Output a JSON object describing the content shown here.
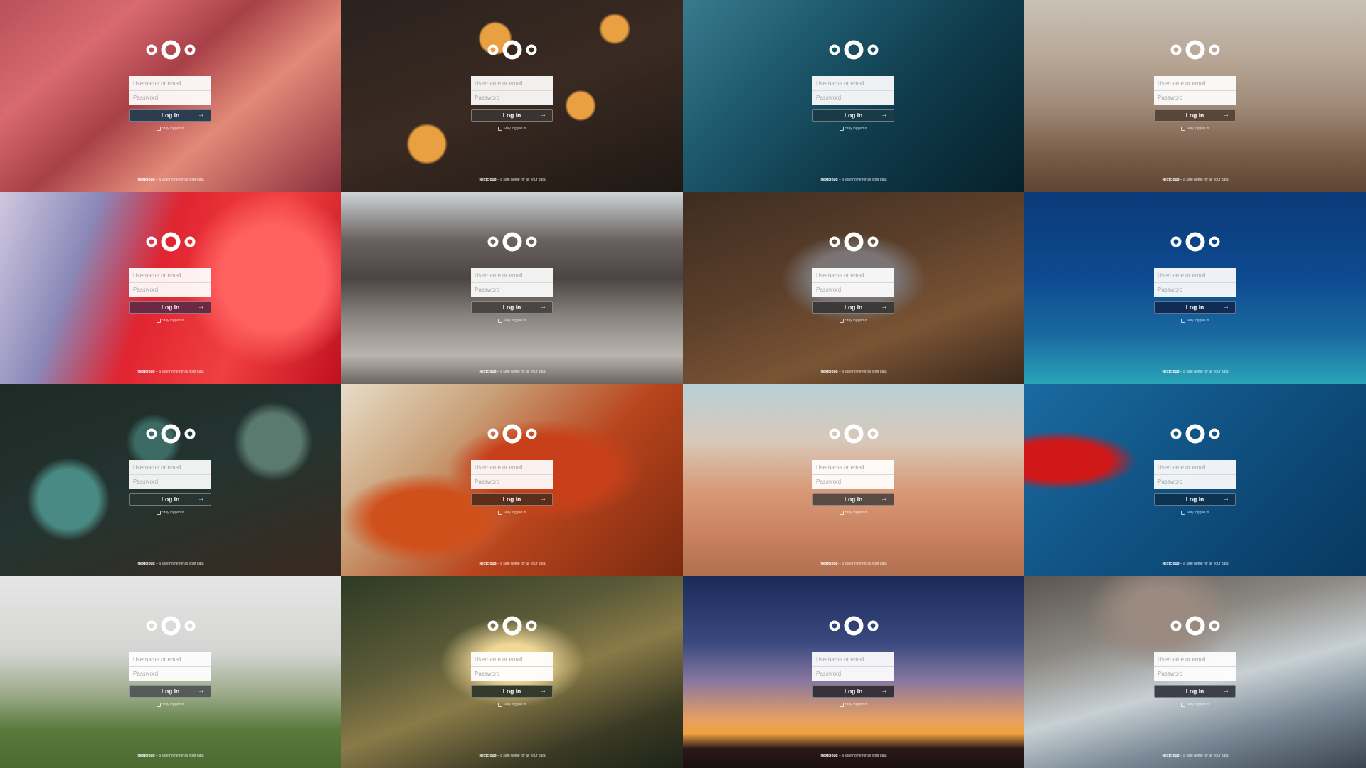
{
  "tiles": [
    {
      "name": "canyon",
      "bg": "linear-gradient(140deg,#b8505a 0%,#d86a70 25%,#a84048 45%,#e28a78 65%,#8a2f3e 100%)",
      "button_color": "#2c3d50"
    },
    {
      "name": "berries",
      "bg": "radial-gradient(circle at 45% 20%,#e8a040 0 6%,transparent 7%),radial-gradient(circle at 70% 55%,#e8a040 0 5%,transparent 6%),radial-gradient(circle at 25% 75%,#e8a040 0 6%,transparent 7%),radial-gradient(circle at 80% 15%,#e8a040 0 4%,transparent 5%),linear-gradient(160deg,#2a221e 0%,#3a2a22 50%,#1e1814 100%)",
      "button_color": "#3b3330"
    },
    {
      "name": "water",
      "bg": "linear-gradient(135deg,#3a7b8e 0%,#1e5a6e 30%,#0f3b4c 60%,#06202a 100%)",
      "button_color": "#1a3a48"
    },
    {
      "name": "beach-cliffs",
      "bg": "linear-gradient(180deg,#c9c1b6 0%,#b8a797 30%,#a08a78 55%,#7a5e4a 80%,#5e4434 100%)",
      "button_color": "#5a4638"
    },
    {
      "name": "lanterns",
      "bg": "radial-gradient(circle at 80% 45%,#ff6060 0 18%,transparent 30%),linear-gradient(110deg,#d0c8e0 0%,#8a88b8 25%,#e02430 45%,#f04040 70%,#c01020 100%)",
      "button_color": "#6a2a44"
    },
    {
      "name": "seal",
      "bg": "linear-gradient(180deg,#cfd4d8 0%,#6a6260 25%,#4a4442 45%,#8a8480 65%,#b8b4ae 85%,#6c6662 100%)",
      "button_color": "#4a4644"
    },
    {
      "name": "raccoon",
      "bg": "radial-gradient(ellipse at 50% 45%,#7a7474 0 18%,transparent 30%),linear-gradient(160deg,#3e2c22 0%,#5a3e2a 40%,#7a5434 70%,#3a281c 100%)",
      "button_color": "#3c3a38"
    },
    {
      "name": "ocean",
      "bg": "linear-gradient(180deg,#0a3a78 0%,#0e4a90 45%,#1a6aa0 75%,#2aa4b8 100%)",
      "button_color": "#0e2c54"
    },
    {
      "name": "moss",
      "bg": "radial-gradient(circle at 20% 60%,#4a8a84 0 10%,transparent 14%),radial-gradient(circle at 80% 30%,#5a7a70 0 9%,transparent 13%),radial-gradient(circle at 45% 30%,#3c6a64 0 8%,transparent 12%),linear-gradient(160deg,#1e2a26 0%,#243430 50%,#3a2a20 100%)",
      "button_color": "#283432"
    },
    {
      "name": "leaves",
      "bg": "radial-gradient(ellipse at 60% 45%,#c8401a 0 22%,transparent 34%),radial-gradient(ellipse at 25% 70%,#d0501c 0 15%,transparent 24%),linear-gradient(135deg,#e8dcc8 0%,#c9a078 30%,#b8441c 60%,#7a2a10 100%)",
      "button_color": "#5a2e1a"
    },
    {
      "name": "desert",
      "bg": "linear-gradient(180deg,#b8d0d8 0%,#d8c8b8 30%,#d89a78 55%,#c88060 80%,#b07050 100%)",
      "button_color": "#5a4a44"
    },
    {
      "name": "maple",
      "bg": "radial-gradient(ellipse at 10% 40%,#d01818 0 12%,transparent 18%),linear-gradient(135deg,#1a6aa0 0%,#0f5080 50%,#083860 100%)",
      "button_color": "#0e3252"
    },
    {
      "name": "foggy-hills",
      "bg": "linear-gradient(180deg,#e6e6e6 0%,#d4d4d2 40%,#9aaa88 62%,#5a7a3c 80%,#4a6a30 100%)",
      "button_color": "#555b58"
    },
    {
      "name": "forest-light",
      "bg": "radial-gradient(ellipse at 50% 45%,#f0d898 0 12%,transparent 30%),linear-gradient(160deg,#2e3a24 0%,#5a5a38 35%,#8a7a48 55%,#3a3a24 80%,#1e2418 100%)",
      "button_color": "#333a2c"
    },
    {
      "name": "sunset",
      "bg": "linear-gradient(180deg,#1a2a58 0%,#3a4a80 35%,#8a78a0 55%,#e8a060 75%,#f0a040 82%,#2a1818 90%,#1a1010 100%)",
      "button_color": "#36323c"
    },
    {
      "name": "volcano",
      "bg": "radial-gradient(ellipse at 40% 20%,#9a8a80 0 12%,transparent 26%),linear-gradient(165deg,#5a5550 0%,#8a8680 30%,#c8d0d4 55%,#7a8a96 75%,#3a4450 100%)",
      "button_color": "#3c4048"
    }
  ],
  "login": {
    "username_placeholder": "Username or email",
    "password_placeholder": "Password",
    "button_label": "Log in",
    "stay_logged_in": "Stay logged in"
  },
  "footer": {
    "brand": "Nextcloud",
    "tagline": " – a safe home for all your data"
  }
}
